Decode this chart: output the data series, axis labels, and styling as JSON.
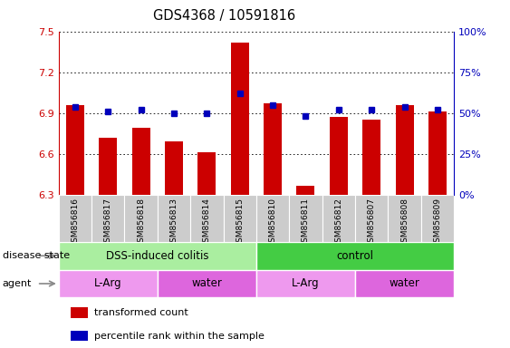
{
  "title": "GDS4368 / 10591816",
  "samples": [
    "GSM856816",
    "GSM856817",
    "GSM856818",
    "GSM856813",
    "GSM856814",
    "GSM856815",
    "GSM856810",
    "GSM856811",
    "GSM856812",
    "GSM856807",
    "GSM856808",
    "GSM856809"
  ],
  "bar_values": [
    6.96,
    6.72,
    6.79,
    6.69,
    6.61,
    7.42,
    6.97,
    6.37,
    6.87,
    6.85,
    6.96,
    6.91
  ],
  "percentile_values": [
    54,
    51,
    52,
    50,
    50,
    62,
    55,
    48,
    52,
    52,
    54,
    52
  ],
  "ylim_left": [
    6.3,
    7.5
  ],
  "ylim_right": [
    0,
    100
  ],
  "yticks_left": [
    6.3,
    6.6,
    6.9,
    7.2,
    7.5
  ],
  "yticks_right": [
    0,
    25,
    50,
    75,
    100
  ],
  "bar_color": "#cc0000",
  "dot_color": "#0000bb",
  "disease_state_groups": [
    {
      "label": "DSS-induced colitis",
      "start": 0,
      "end": 6,
      "color": "#aaeea0"
    },
    {
      "label": "control",
      "start": 6,
      "end": 12,
      "color": "#44cc44"
    }
  ],
  "agent_groups": [
    {
      "label": "L-Arg",
      "start": 0,
      "end": 3,
      "color": "#ee99ee"
    },
    {
      "label": "water",
      "start": 3,
      "end": 6,
      "color": "#dd66dd"
    },
    {
      "label": "L-Arg",
      "start": 6,
      "end": 9,
      "color": "#ee99ee"
    },
    {
      "label": "water",
      "start": 9,
      "end": 12,
      "color": "#dd66dd"
    }
  ],
  "tick_color_left": "#cc0000",
  "tick_color_right": "#0000bb",
  "legend_items": [
    {
      "label": "transformed count",
      "color": "#cc0000"
    },
    {
      "label": "percentile rank within the sample",
      "color": "#0000bb"
    }
  ],
  "xticklabel_color": "#444444",
  "xticklabel_bg": "#cccccc"
}
